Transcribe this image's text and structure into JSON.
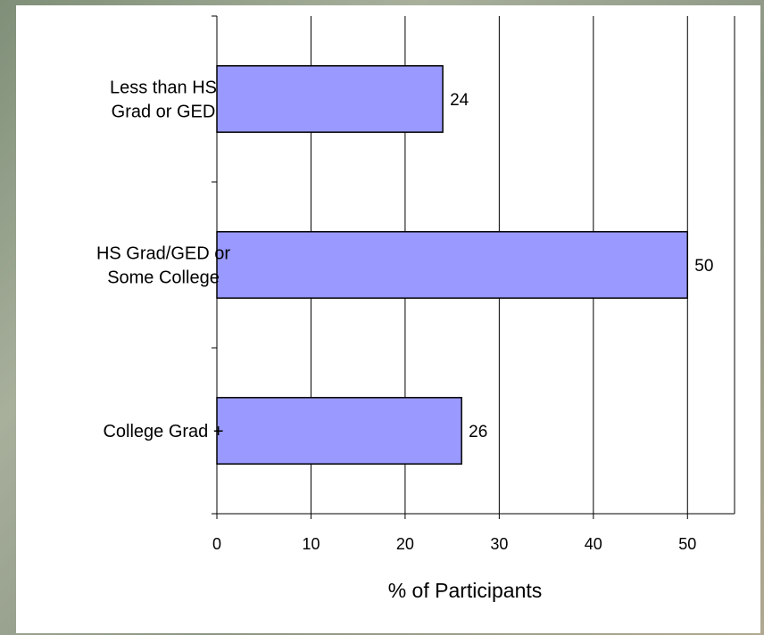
{
  "chart_data": {
    "type": "bar",
    "orientation": "horizontal",
    "categories": [
      [
        "Less than HS",
        "Grad or GED"
      ],
      [
        "HS Grad/GED or",
        "Some College"
      ],
      [
        "College Grad +"
      ]
    ],
    "values": [
      24,
      50,
      26
    ],
    "value_labels": [
      "24",
      "50",
      "26"
    ],
    "xlabel": "% of Participants",
    "xlim": [
      0,
      55
    ],
    "xticks": [
      0,
      10,
      20,
      30,
      40,
      50
    ],
    "xtick_labels": [
      "0",
      "10",
      "20",
      "30",
      "40",
      "50"
    ],
    "grid": true,
    "bar_color": "#9999ff",
    "bar_edge_color": "#000000"
  }
}
